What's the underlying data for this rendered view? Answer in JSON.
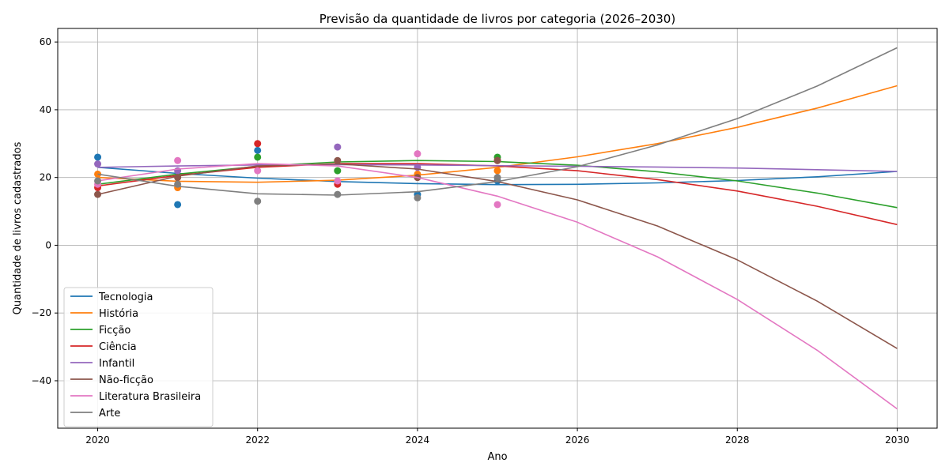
{
  "chart_data": {
    "type": "line",
    "title": "Previsão da quantidade de livros por categoria (2026–2030)",
    "xlabel": "Ano",
    "ylabel": "Quantidade de livros cadastrados",
    "xlim": [
      2019.5,
      2030.5
    ],
    "ylim": [
      -54,
      64
    ],
    "xticks": [
      2020,
      2022,
      2024,
      2026,
      2028,
      2030
    ],
    "yticks": [
      -40,
      -20,
      0,
      20,
      40,
      60
    ],
    "grid": true,
    "legend_position": "lower-left",
    "series": [
      {
        "name": "Tecnologia",
        "color": "#1f77b4",
        "points_x": [
          2020,
          2021,
          2022,
          2024,
          2025
        ],
        "points_y": [
          26,
          12,
          28,
          15,
          19
        ],
        "line_x": [
          2020,
          2021,
          2022,
          2023,
          2024,
          2025,
          2026,
          2027,
          2028,
          2029,
          2030
        ],
        "line_y": [
          23.0,
          21.2,
          19.8,
          18.8,
          18.2,
          17.9,
          18.0,
          18.4,
          19.1,
          20.2,
          21.8
        ]
      },
      {
        "name": "História",
        "color": "#ff7f0e",
        "points_x": [
          2020,
          2021,
          2024,
          2025
        ],
        "points_y": [
          21,
          17,
          21,
          22
        ],
        "line_x": [
          2020,
          2021,
          2022,
          2023,
          2024,
          2025,
          2026,
          2027,
          2028,
          2029,
          2030
        ],
        "line_y": [
          20.0,
          18.9,
          18.6,
          19.2,
          20.7,
          23.0,
          26.1,
          30.0,
          34.8,
          40.5,
          47.1
        ]
      },
      {
        "name": "Ficção",
        "color": "#2ca02c",
        "points_x": [
          2022,
          2023,
          2025
        ],
        "points_y": [
          26,
          22,
          26
        ],
        "line_x": [
          2020,
          2021,
          2022,
          2023,
          2024,
          2025,
          2026,
          2027,
          2028,
          2029,
          2030
        ],
        "line_y": [
          18.0,
          21.0,
          23.3,
          24.6,
          25.0,
          24.7,
          23.6,
          21.7,
          19.0,
          15.4,
          11.1
        ]
      },
      {
        "name": "Ciência",
        "color": "#d62728",
        "points_x": [
          2020,
          2022,
          2023,
          2025
        ],
        "points_y": [
          17,
          30,
          18,
          25
        ],
        "line_x": [
          2020,
          2021,
          2022,
          2023,
          2024,
          2025,
          2026,
          2027,
          2028,
          2029,
          2030
        ],
        "line_y": [
          17.5,
          20.6,
          23.0,
          24.1,
          24.1,
          23.4,
          22.0,
          19.4,
          16.0,
          11.5,
          6.1
        ]
      },
      {
        "name": "Infantil",
        "color": "#9467bd",
        "points_x": [
          2020,
          2021,
          2023,
          2024
        ],
        "points_y": [
          24,
          22,
          29,
          23
        ],
        "line_x": [
          2020,
          2021,
          2022,
          2023,
          2024,
          2025,
          2026,
          2027,
          2028,
          2029,
          2030
        ],
        "line_y": [
          23.0,
          23.4,
          23.7,
          23.8,
          23.7,
          23.5,
          23.3,
          23.1,
          22.8,
          22.3,
          21.8
        ]
      },
      {
        "name": "Não-ficção",
        "color": "#8c564b",
        "points_x": [
          2020,
          2021,
          2023,
          2024,
          2025
        ],
        "points_y": [
          15,
          20,
          25,
          20,
          25
        ],
        "line_x": [
          2020,
          2021,
          2022,
          2023,
          2024,
          2025,
          2026,
          2027,
          2028,
          2029,
          2030
        ],
        "line_y": [
          15.0,
          20.4,
          23.4,
          24.0,
          22.5,
          18.8,
          13.4,
          5.7,
          -4.3,
          -16.5,
          -30.5
        ]
      },
      {
        "name": "Literatura Brasileira",
        "color": "#e377c2",
        "points_x": [
          2020,
          2021,
          2022,
          2023,
          2024,
          2025
        ],
        "points_y": [
          18,
          25,
          22,
          19,
          27,
          12
        ],
        "line_x": [
          2020,
          2021,
          2022,
          2023,
          2024,
          2025,
          2026,
          2027,
          2028,
          2029,
          2030
        ],
        "line_y": [
          19.0,
          22.5,
          24.1,
          23.4,
          20.0,
          14.5,
          6.8,
          -3.4,
          -16.0,
          -31.0,
          -48.3
        ]
      },
      {
        "name": "Arte",
        "color": "#7f7f7f",
        "points_x": [
          2020,
          2021,
          2022,
          2023,
          2024,
          2025
        ],
        "points_y": [
          19,
          18,
          13,
          15,
          14,
          20
        ],
        "line_x": [
          2020,
          2021,
          2022,
          2023,
          2024,
          2025,
          2026,
          2027,
          2028,
          2029,
          2030
        ],
        "line_y": [
          21.0,
          17.4,
          15.2,
          14.8,
          15.8,
          18.8,
          23.2,
          29.6,
          37.4,
          47.0,
          58.3
        ]
      }
    ]
  }
}
